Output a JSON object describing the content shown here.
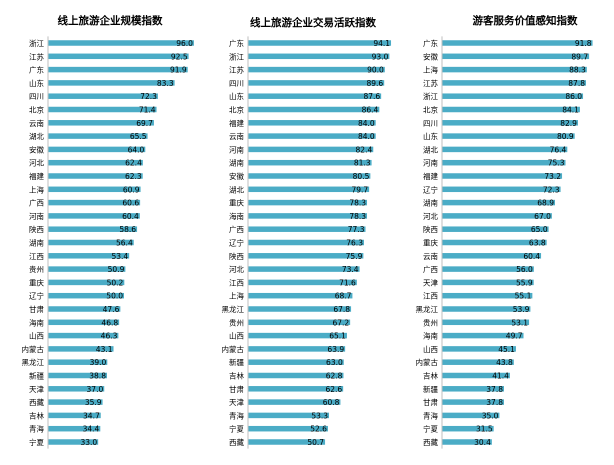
{
  "chart_data": [
    {
      "type": "bar",
      "orientation": "horizontal",
      "title": "线上旅游企业规模指数",
      "xlim": [
        0,
        100
      ],
      "color": "#4bacc6",
      "grid": false,
      "legend": "none",
      "categories": [
        "浙江",
        "江苏",
        "广东",
        "山东",
        "四川",
        "北京",
        "云南",
        "湖北",
        "安徽",
        "河北",
        "福建",
        "上海",
        "广西",
        "河南",
        "陕西",
        "湖南",
        "江西",
        "贵州",
        "重庆",
        "辽宁",
        "甘肃",
        "海南",
        "山西",
        "内蒙古",
        "黑龙江",
        "新疆",
        "天津",
        "西藏",
        "吉林",
        "青海",
        "宁夏"
      ],
      "values": [
        96.0,
        92.5,
        91.9,
        83.3,
        72.3,
        71.4,
        69.7,
        65.5,
        64.0,
        62.4,
        62.3,
        60.9,
        60.6,
        60.4,
        58.6,
        56.4,
        53.4,
        50.9,
        50.2,
        50.0,
        47.6,
        46.8,
        46.3,
        43.1,
        39.0,
        38.8,
        37.0,
        35.9,
        34.7,
        34.4,
        33.0
      ],
      "value_labels": [
        "96.0",
        "92.5",
        "91.9",
        "83.3",
        "72.3",
        "71.4",
        "69.7",
        "65.5",
        "64.0",
        "62.4",
        "62.3",
        "60.9",
        "60.6",
        "60.4",
        "58.6",
        "56.4",
        "53.4",
        "50.9",
        "50.2",
        "50.0",
        "47.6",
        "46.8",
        "46.3",
        "43.1",
        "39.0",
        "38.8",
        "37.0",
        "35.9",
        "34.7",
        "34.4",
        "33.0"
      ]
    },
    {
      "type": "bar",
      "orientation": "horizontal",
      "title": "线上旅游企业交易活跃指数",
      "xlim": [
        0,
        100
      ],
      "color": "#4bacc6",
      "grid": false,
      "legend": "none",
      "categories": [
        "广东",
        "浙江",
        "江苏",
        "四川",
        "山东",
        "北京",
        "福建",
        "云南",
        "河南",
        "湖南",
        "安徽",
        "湖北",
        "重庆",
        "海南",
        "广西",
        "辽宁",
        "陕西",
        "河北",
        "江西",
        "上海",
        "黑龙江",
        "贵州",
        "山西",
        "内蒙古",
        "新疆",
        "吉林",
        "甘肃",
        "天津",
        "青海",
        "宁夏",
        "西藏"
      ],
      "values": [
        94.1,
        93.0,
        90.0,
        89.6,
        87.6,
        86.4,
        84.0,
        84.0,
        82.4,
        81.3,
        80.5,
        79.7,
        78.3,
        78.3,
        77.3,
        76.3,
        75.9,
        73.4,
        71.6,
        68.7,
        67.8,
        67.2,
        65.1,
        63.9,
        63.0,
        62.8,
        62.6,
        60.8,
        53.3,
        52.6,
        50.7
      ],
      "value_labels": [
        "94.1",
        "93.0",
        "90.0",
        "89.6",
        "87.6",
        "86.4",
        "84.0",
        "84.0",
        "82.4",
        "81.3",
        "80.5",
        "79.7",
        "78.3",
        "78.3",
        "77.3",
        "76.3",
        "75.9",
        "73.4",
        "71.6",
        "68.7",
        "67.8",
        "67.2",
        "65.1",
        "63.9",
        "63.0",
        "62.8",
        "62.6",
        "60.8",
        "53.3",
        "52.6",
        "50.7"
      ]
    },
    {
      "type": "bar",
      "orientation": "horizontal",
      "title": "游客服务价值感知指数",
      "xlim": [
        0,
        100
      ],
      "color": "#4bacc6",
      "grid": false,
      "legend": "none",
      "categories": [
        "广东",
        "安徽",
        "上海",
        "江苏",
        "浙江",
        "北京",
        "四川",
        "山东",
        "湖北",
        "河南",
        "福建",
        "辽宁",
        "湖南",
        "河北",
        "陕西",
        "重庆",
        "云南",
        "广西",
        "天津",
        "江西",
        "黑龙江",
        "贵州",
        "海南",
        "山西",
        "内蒙古",
        "吉林",
        "新疆",
        "甘肃",
        "青海",
        "宁夏",
        "西藏"
      ],
      "values": [
        91.8,
        89.7,
        88.3,
        87.8,
        86.0,
        84.1,
        82.9,
        80.9,
        76.4,
        75.3,
        73.2,
        72.3,
        68.9,
        67.0,
        65.0,
        63.8,
        60.4,
        56.0,
        55.9,
        55.1,
        53.9,
        53.1,
        49.7,
        45.1,
        43.8,
        41.4,
        37.8,
        37.8,
        35.0,
        31.5,
        30.4
      ],
      "value_labels": [
        "91.8",
        "89.7",
        "88.3",
        "87.8",
        "86.0",
        "84.1",
        "82.9",
        "80.9",
        "76.4",
        "75.3",
        "73.2",
        "72.3",
        "68.9",
        "67.0",
        "65.0",
        "63.8",
        "60.4",
        "56.0",
        "55.9",
        "55.1",
        "53.9",
        "53.1",
        "49.7",
        "45.1",
        "43.8",
        "41.4",
        "37.8",
        "37.8",
        "35.0",
        "31.5",
        "30.4"
      ]
    }
  ]
}
